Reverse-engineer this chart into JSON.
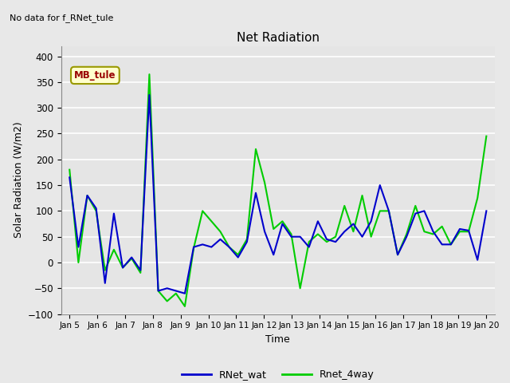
{
  "title": "Net Radiation",
  "xlabel": "Time",
  "ylabel": "Solar Radiation (W/m2)",
  "top_left_text": "No data for f_RNet_tule",
  "annotation_text": "MB_tule",
  "ylim": [
    -100,
    420
  ],
  "yticks": [
    -100,
    -50,
    0,
    50,
    100,
    150,
    200,
    250,
    300,
    350,
    400
  ],
  "x_labels": [
    "Jan 5",
    "Jan 6",
    "Jan 7",
    "Jan 8",
    "Jan 9",
    "Jan 10",
    "Jan 11",
    "Jan 12",
    "Jan 13",
    "Jan 14",
    "Jan 15",
    "Jan 16",
    "Jan 17",
    "Jan 18",
    "Jan 19",
    "Jan 20"
  ],
  "RNet_wat": [
    165,
    30,
    130,
    105,
    -40,
    95,
    -10,
    10,
    -15,
    325,
    -55,
    -50,
    -55,
    -60,
    30,
    35,
    30,
    45,
    30,
    10,
    40,
    135,
    60,
    15,
    75,
    50,
    50,
    30,
    80,
    45,
    40,
    60,
    75,
    50,
    80,
    150,
    100,
    15,
    50,
    95,
    100,
    60,
    35,
    35,
    65,
    62,
    5,
    100
  ],
  "Rnet_4way": [
    180,
    0,
    130,
    100,
    -15,
    25,
    -10,
    8,
    -20,
    365,
    -55,
    -75,
    -60,
    -85,
    28,
    100,
    80,
    60,
    30,
    15,
    45,
    220,
    155,
    65,
    80,
    55,
    -50,
    40,
    55,
    40,
    50,
    110,
    60,
    130,
    50,
    100,
    100,
    15,
    55,
    110,
    60,
    55,
    70,
    35,
    60,
    60,
    125,
    245
  ],
  "blue_color": "#0000CC",
  "green_color": "#00CC00",
  "bg_color": "#E5E5E5",
  "grid_color": "#FFFFFF",
  "fig_bg": "#E8E8E8",
  "legend_blue": "RNet_wat",
  "legend_green": "Rnet_4way",
  "annotation_bg": "#FFFFCC",
  "annotation_border": "#999900",
  "annotation_text_color": "#990000"
}
